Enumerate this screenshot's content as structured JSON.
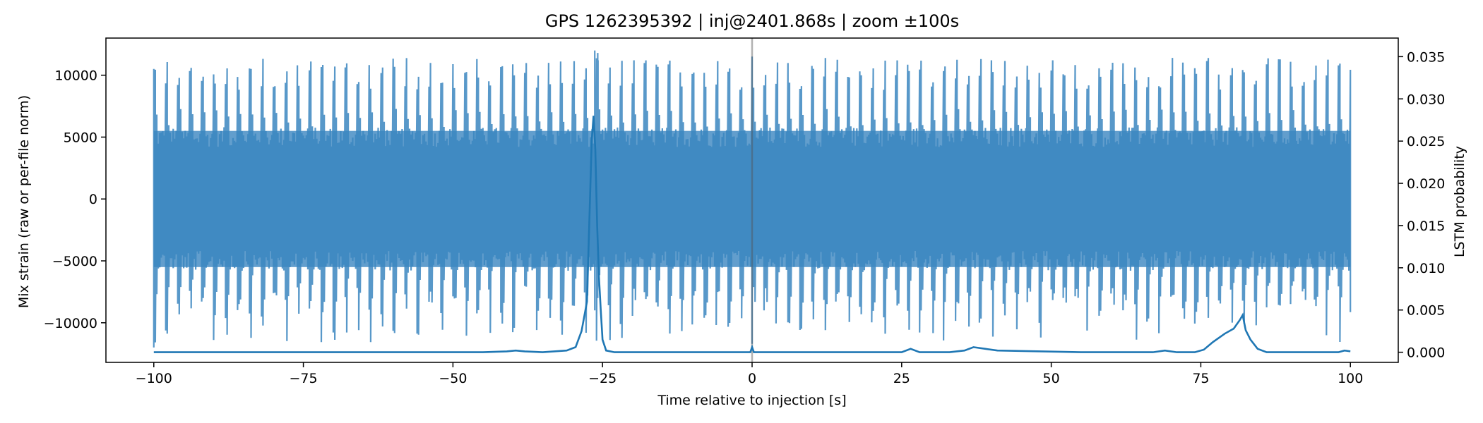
{
  "chart_data": {
    "type": "line",
    "title": "GPS 1262395392 | inj@2401.868s | zoom ±100s",
    "xlabel": "Time relative to injection [s]",
    "ylabel_left": "Mix strain (raw or per-file norm)",
    "ylabel_right": "LSTM probability",
    "xlim": [
      -108,
      108
    ],
    "ylim_left": [
      -13200,
      13000
    ],
    "ylim_right": [
      -0.0012,
      0.0372
    ],
    "x_ticks": [
      -100,
      -75,
      -50,
      -25,
      0,
      25,
      50,
      75,
      100
    ],
    "x_tick_labels": [
      "−100",
      "−75",
      "−50",
      "−25",
      "0",
      "25",
      "50",
      "75",
      "100"
    ],
    "y_left_ticks": [
      -10000,
      -5000,
      0,
      5000,
      10000
    ],
    "y_left_tick_labels": [
      "−10000",
      "−5000",
      "0",
      "5000",
      "10000"
    ],
    "y_right_ticks": [
      0.0,
      0.005,
      0.01,
      0.015,
      0.02,
      0.025,
      0.03,
      0.035
    ],
    "y_right_tick_labels": [
      "0.000",
      "0.005",
      "0.010",
      "0.015",
      "0.020",
      "0.025",
      "0.030",
      "0.035"
    ],
    "injection_marker_x": 0,
    "series": [
      {
        "axis": "left",
        "color": "#3b86c0",
        "summary": {
          "x_range": [
            -100,
            100
          ],
          "envelope_min": -12000,
          "envelope_max": 12000,
          "dense_band": [
            -5500,
            5500
          ],
          "spike_period_s": 2.0
        }
      },
      {
        "axis": "right",
        "color": "#1f77b4",
        "x": [
          -100,
          -60,
          -45,
          -41,
          -39.5,
          -38,
          -35,
          -31,
          -29.5,
          -28.5,
          -27.6,
          -27.1,
          -26.8,
          -26.5,
          -26.2,
          -25.9,
          -25.6,
          -25.3,
          -25.0,
          -24.4,
          -23,
          -15,
          -5,
          -0.3,
          0,
          0.3,
          5,
          15,
          25,
          26.5,
          28,
          33,
          35.5,
          37,
          39,
          41,
          55,
          67,
          69,
          71,
          74,
          75.5,
          77,
          79,
          80.5,
          81.5,
          82,
          82.5,
          83.3,
          84.5,
          86,
          92,
          98,
          99,
          100
        ],
        "y": [
          0.0,
          0.0,
          0.0,
          0.0001,
          0.0002,
          0.0001,
          0.0,
          0.0002,
          0.0006,
          0.0025,
          0.006,
          0.018,
          0.025,
          0.028,
          0.024,
          0.015,
          0.009,
          0.005,
          0.0015,
          0.0002,
          0.0,
          0.0,
          0.0,
          0.0,
          0.0006,
          0.0,
          0.0,
          0.0,
          0.0,
          0.0004,
          0.0,
          0.0,
          0.0002,
          0.0006,
          0.0004,
          0.0002,
          0.0,
          0.0,
          0.0002,
          0.0,
          0.0,
          0.0003,
          0.0012,
          0.0022,
          0.0028,
          0.0038,
          0.0044,
          0.0026,
          0.0015,
          0.0004,
          0.0,
          0.0,
          0.0,
          0.0002,
          0.0001
        ]
      }
    ]
  }
}
